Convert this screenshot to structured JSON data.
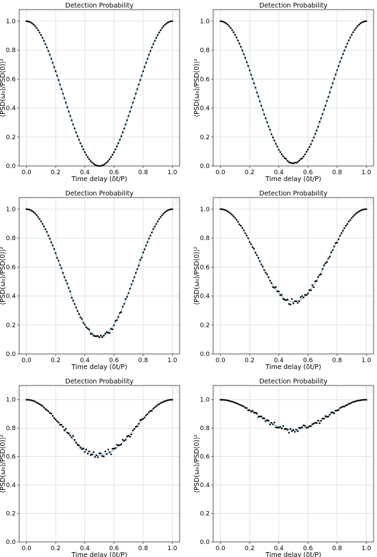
{
  "chart_data": [
    {
      "type": "scatter",
      "title": "Detection Probability",
      "xlabel": "Time delay (δt/P)",
      "ylabel": "⟨PSD(ω₀)/PSD(0)⟩²",
      "xlim": [
        -0.05,
        1.05
      ],
      "ylim": [
        0,
        1.08
      ],
      "xticks": [
        "0.0",
        "0.2",
        "0.4",
        "0.6",
        "0.8",
        "1.0"
      ],
      "yticks": [
        "0.0",
        "0.2",
        "0.4",
        "0.6",
        "0.8",
        "1.0"
      ],
      "grid": true,
      "minimum_at_half_delay": 0.0,
      "scatter_amplitude": 0.0,
      "series": [
        {
          "type": "scatter",
          "color": "#000000"
        },
        {
          "type": "line",
          "color": "#7fb8da"
        }
      ]
    },
    {
      "type": "scatter",
      "title": "Detection Probability",
      "xlabel": "Time delay (δt/P)",
      "ylabel": "⟨PSD(ω₀)/PSD(0)⟩²",
      "xlim": [
        -0.05,
        1.05
      ],
      "ylim": [
        0,
        1.08
      ],
      "xticks": [
        "0.0",
        "0.2",
        "0.4",
        "0.6",
        "0.8",
        "1.0"
      ],
      "yticks": [
        "0.0",
        "0.2",
        "0.4",
        "0.6",
        "0.8",
        "1.0"
      ],
      "grid": true,
      "minimum_at_half_delay": 0.02,
      "scatter_amplitude": 0.004,
      "series": [
        {
          "type": "scatter",
          "color": "#000000"
        },
        {
          "type": "line",
          "color": "#7fb8da"
        }
      ]
    },
    {
      "type": "scatter",
      "title": "Detection Probability",
      "xlabel": "Time delay (δt/P)",
      "ylabel": "⟨PSD(ω₀)/PSD(0)⟩²",
      "xlim": [
        -0.05,
        1.05
      ],
      "ylim": [
        0,
        1.08
      ],
      "xticks": [
        "0.0",
        "0.2",
        "0.4",
        "0.6",
        "0.8",
        "1.0"
      ],
      "yticks": [
        "0.0",
        "0.2",
        "0.4",
        "0.6",
        "0.8",
        "1.0"
      ],
      "grid": true,
      "minimum_at_half_delay": 0.12,
      "scatter_amplitude": 0.012,
      "series": [
        {
          "type": "scatter",
          "color": "#000000"
        },
        {
          "type": "line",
          "color": "#7fb8da"
        }
      ]
    },
    {
      "type": "scatter",
      "title": "Detection Probability",
      "xlabel": "Time delay (δt/P)",
      "ylabel": "⟨PSD(ω₀)/PSD(0)⟩²",
      "xlim": [
        -0.05,
        1.05
      ],
      "ylim": [
        0,
        1.08
      ],
      "xticks": [
        "0.0",
        "0.2",
        "0.4",
        "0.6",
        "0.8",
        "1.0"
      ],
      "yticks": [
        "0.0",
        "0.2",
        "0.4",
        "0.6",
        "0.8",
        "1.0"
      ],
      "grid": true,
      "minimum_at_half_delay": 0.36,
      "scatter_amplitude": 0.02,
      "series": [
        {
          "type": "scatter",
          "color": "#000000"
        },
        {
          "type": "line",
          "color": "#7fb8da"
        }
      ]
    },
    {
      "type": "scatter",
      "title": "Detection Probability",
      "xlabel": "Time delay (δt/P)",
      "ylabel": "⟨PSD(ω₀)/PSD(0)⟩²",
      "xlim": [
        -0.05,
        1.05
      ],
      "ylim": [
        0,
        1.1
      ],
      "xticks": [
        "0.0",
        "0.2",
        "0.4",
        "0.6",
        "0.8",
        "1.0"
      ],
      "yticks": [
        "0.0",
        "0.2",
        "0.4",
        "0.6",
        "0.8",
        "1.0"
      ],
      "grid": true,
      "minimum_at_half_delay": 0.61,
      "scatter_amplitude": 0.025,
      "series": [
        {
          "type": "scatter",
          "color": "#000000"
        },
        {
          "type": "line",
          "color": "#7fb8da"
        }
      ]
    },
    {
      "type": "scatter",
      "title": "Detection Probability",
      "xlabel": "Time delay (δt/P)",
      "ylabel": "⟨PSD(ω₀)/PSD(0)⟩²",
      "xlim": [
        -0.05,
        1.05
      ],
      "ylim": [
        0,
        1.1
      ],
      "xticks": [
        "0.0",
        "0.2",
        "0.4",
        "0.6",
        "0.8",
        "1.0"
      ],
      "yticks": [
        "0.0",
        "0.2",
        "0.4",
        "0.6",
        "0.8",
        "1.0"
      ],
      "grid": true,
      "minimum_at_half_delay": 0.79,
      "scatter_amplitude": 0.02,
      "series": [
        {
          "type": "scatter",
          "color": "#000000"
        },
        {
          "type": "line",
          "color": "#7fb8da"
        }
      ]
    }
  ]
}
